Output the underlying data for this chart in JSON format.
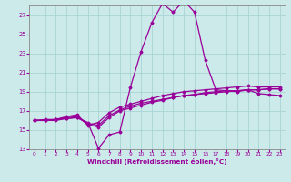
{
  "xlabel": "Windchill (Refroidissement éolien,°C)",
  "bg_color": "#cceaea",
  "line_color": "#990099",
  "grid_color": "#aad4d4",
  "xlim": [
    -0.5,
    23.5
  ],
  "ylim": [
    13,
    28
  ],
  "yticks": [
    13,
    15,
    17,
    19,
    21,
    23,
    25,
    27
  ],
  "xticks": [
    0,
    1,
    2,
    3,
    4,
    5,
    6,
    7,
    8,
    9,
    10,
    11,
    12,
    13,
    14,
    15,
    16,
    17,
    18,
    19,
    20,
    21,
    22,
    23
  ],
  "series": [
    [
      16.0,
      16.0,
      16.0,
      16.2,
      16.3,
      15.8,
      13.1,
      14.5,
      14.8,
      19.5,
      23.2,
      26.2,
      28.2,
      27.3,
      28.5,
      27.3,
      22.3,
      19.2,
      19.1,
      19.0,
      19.2,
      18.8,
      18.7,
      18.6
    ],
    [
      16.0,
      16.1,
      16.1,
      16.4,
      16.6,
      15.5,
      15.8,
      16.8,
      17.4,
      17.7,
      18.0,
      18.3,
      18.6,
      18.8,
      19.0,
      19.1,
      19.2,
      19.3,
      19.4,
      19.5,
      19.6,
      19.5,
      19.5,
      19.5
    ],
    [
      16.0,
      16.0,
      16.1,
      16.3,
      16.4,
      15.6,
      15.3,
      16.3,
      17.0,
      17.3,
      17.6,
      17.9,
      18.1,
      18.4,
      18.6,
      18.7,
      18.9,
      19.0,
      19.1,
      19.1,
      19.2,
      19.2,
      19.3,
      19.3
    ],
    [
      16.0,
      16.0,
      16.1,
      16.2,
      16.3,
      15.7,
      15.5,
      16.5,
      17.1,
      17.5,
      17.8,
      18.0,
      18.2,
      18.4,
      18.6,
      18.7,
      18.8,
      18.9,
      19.0,
      19.1,
      19.2,
      19.2,
      19.3,
      19.3
    ]
  ]
}
